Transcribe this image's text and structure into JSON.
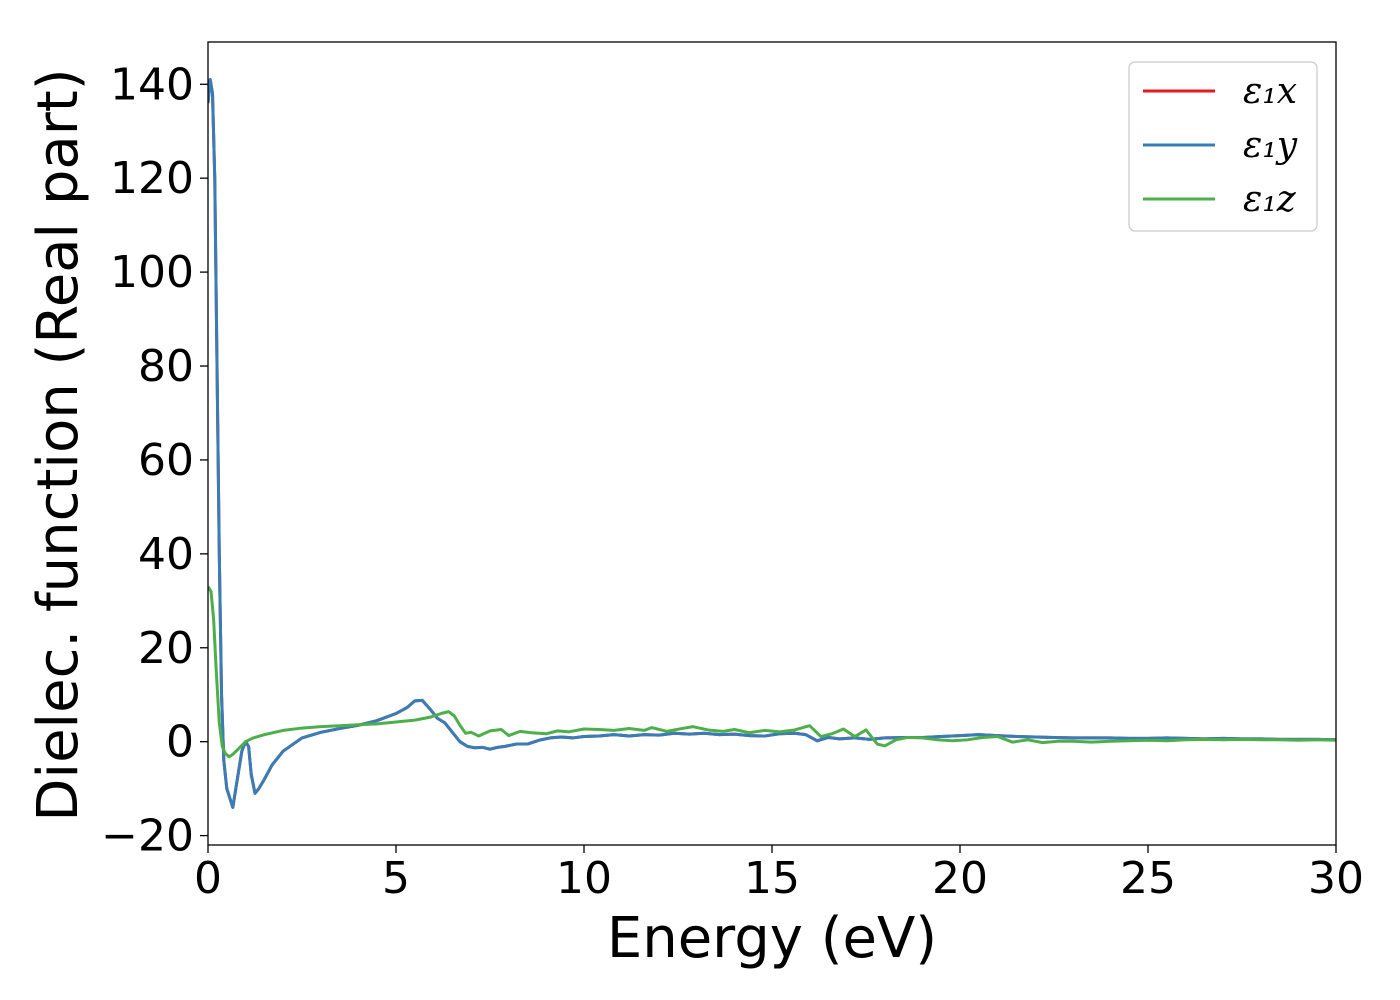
{
  "chart_data": {
    "type": "line",
    "xlabel": "Energy (eV)",
    "ylabel": "Dielec. function (Real part)",
    "xlim": [
      0,
      30
    ],
    "ylim": [
      -22,
      149
    ],
    "xticks": [
      0,
      5,
      10,
      15,
      20,
      25,
      30
    ],
    "yticks": [
      -20,
      0,
      20,
      40,
      60,
      80,
      100,
      120,
      140
    ],
    "xtick_labels": [
      "0",
      "5",
      "10",
      "15",
      "20",
      "25",
      "30"
    ],
    "ytick_labels": [
      "−20",
      "0",
      "20",
      "40",
      "60",
      "80",
      "100",
      "120",
      "140"
    ],
    "grid": false,
    "legend": "top-right",
    "series": [
      {
        "name": "ε₁x",
        "color": "#e41a1c",
        "points": [
          [
            0.0,
            136
          ],
          [
            0.06,
            141
          ],
          [
            0.12,
            138
          ],
          [
            0.18,
            120
          ],
          [
            0.24,
            80
          ],
          [
            0.3,
            40
          ],
          [
            0.36,
            10
          ],
          [
            0.42,
            -4
          ],
          [
            0.5,
            -10
          ],
          [
            0.58,
            -12
          ],
          [
            0.66,
            -14
          ],
          [
            0.74,
            -10
          ],
          [
            0.82,
            -6
          ],
          [
            0.9,
            -2
          ],
          [
            1.0,
            0
          ],
          [
            1.08,
            -1
          ],
          [
            1.15,
            -7
          ],
          [
            1.25,
            -11
          ],
          [
            1.35,
            -10
          ],
          [
            1.5,
            -8
          ],
          [
            1.7,
            -5
          ],
          [
            2.0,
            -2
          ],
          [
            2.5,
            0.8
          ],
          [
            3.0,
            2
          ],
          [
            3.5,
            2.8
          ],
          [
            4.0,
            3.5
          ],
          [
            4.5,
            4.5
          ],
          [
            5.0,
            6
          ],
          [
            5.3,
            7.3
          ],
          [
            5.5,
            8.7
          ],
          [
            5.7,
            8.8
          ],
          [
            5.9,
            7
          ],
          [
            6.1,
            5
          ],
          [
            6.3,
            4
          ],
          [
            6.5,
            2
          ],
          [
            6.7,
            0
          ],
          [
            6.9,
            -1
          ],
          [
            7.1,
            -1.3
          ],
          [
            7.3,
            -1.2
          ],
          [
            7.5,
            -1.6
          ],
          [
            7.7,
            -1.2
          ],
          [
            7.9,
            -1
          ],
          [
            8.2,
            -0.5
          ],
          [
            8.5,
            -0.5
          ],
          [
            8.8,
            0.3
          ],
          [
            9.1,
            0.8
          ],
          [
            9.4,
            1
          ],
          [
            9.7,
            0.8
          ],
          [
            10.0,
            1.1
          ],
          [
            10.4,
            1.2
          ],
          [
            10.8,
            1.5
          ],
          [
            11.2,
            1.2
          ],
          [
            11.6,
            1.5
          ],
          [
            12.0,
            1.4
          ],
          [
            12.4,
            1.8
          ],
          [
            12.8,
            1.6
          ],
          [
            13.2,
            1.8
          ],
          [
            13.6,
            1.5
          ],
          [
            14.0,
            1.6
          ],
          [
            14.4,
            1.3
          ],
          [
            14.8,
            1.2
          ],
          [
            15.2,
            1.7
          ],
          [
            15.6,
            1.8
          ],
          [
            15.9,
            1.5
          ],
          [
            16.2,
            0.2
          ],
          [
            16.5,
            0.9
          ],
          [
            16.8,
            0.6
          ],
          [
            17.2,
            0.8
          ],
          [
            17.6,
            0.5
          ],
          [
            18.0,
            0.8
          ],
          [
            18.5,
            0.9
          ],
          [
            19.0,
            0.9
          ],
          [
            19.5,
            1.1
          ],
          [
            20.0,
            1.3
          ],
          [
            20.5,
            1.5
          ],
          [
            21.0,
            1.3
          ],
          [
            21.5,
            1.1
          ],
          [
            22.0,
            1.0
          ],
          [
            22.5,
            0.9
          ],
          [
            23.0,
            0.8
          ],
          [
            23.5,
            0.8
          ],
          [
            24.0,
            0.8
          ],
          [
            24.5,
            0.7
          ],
          [
            25.0,
            0.7
          ],
          [
            25.5,
            0.8
          ],
          [
            26.0,
            0.7
          ],
          [
            26.5,
            0.6
          ],
          [
            27.0,
            0.7
          ],
          [
            27.5,
            0.6
          ],
          [
            28.0,
            0.6
          ],
          [
            28.5,
            0.5
          ],
          [
            29.0,
            0.5
          ],
          [
            29.5,
            0.5
          ],
          [
            30.0,
            0.4
          ]
        ]
      },
      {
        "name": "ε₁y",
        "color": "#377eb8",
        "points": [
          [
            0.0,
            136
          ],
          [
            0.06,
            141
          ],
          [
            0.12,
            138
          ],
          [
            0.18,
            120
          ],
          [
            0.24,
            80
          ],
          [
            0.3,
            40
          ],
          [
            0.36,
            10
          ],
          [
            0.42,
            -4
          ],
          [
            0.5,
            -10
          ],
          [
            0.58,
            -12
          ],
          [
            0.66,
            -14
          ],
          [
            0.74,
            -10
          ],
          [
            0.82,
            -6
          ],
          [
            0.9,
            -2
          ],
          [
            1.0,
            0
          ],
          [
            1.08,
            -1
          ],
          [
            1.15,
            -7
          ],
          [
            1.25,
            -11
          ],
          [
            1.35,
            -10
          ],
          [
            1.5,
            -8
          ],
          [
            1.7,
            -5
          ],
          [
            2.0,
            -2
          ],
          [
            2.5,
            0.8
          ],
          [
            3.0,
            2
          ],
          [
            3.5,
            2.8
          ],
          [
            4.0,
            3.5
          ],
          [
            4.5,
            4.5
          ],
          [
            5.0,
            6
          ],
          [
            5.3,
            7.3
          ],
          [
            5.5,
            8.7
          ],
          [
            5.7,
            8.8
          ],
          [
            5.9,
            7
          ],
          [
            6.1,
            5
          ],
          [
            6.3,
            4
          ],
          [
            6.5,
            2
          ],
          [
            6.7,
            0
          ],
          [
            6.9,
            -1
          ],
          [
            7.1,
            -1.3
          ],
          [
            7.3,
            -1.2
          ],
          [
            7.5,
            -1.6
          ],
          [
            7.7,
            -1.2
          ],
          [
            7.9,
            -1
          ],
          [
            8.2,
            -0.5
          ],
          [
            8.5,
            -0.5
          ],
          [
            8.8,
            0.3
          ],
          [
            9.1,
            0.8
          ],
          [
            9.4,
            1
          ],
          [
            9.7,
            0.8
          ],
          [
            10.0,
            1.1
          ],
          [
            10.4,
            1.2
          ],
          [
            10.8,
            1.5
          ],
          [
            11.2,
            1.2
          ],
          [
            11.6,
            1.5
          ],
          [
            12.0,
            1.4
          ],
          [
            12.4,
            1.8
          ],
          [
            12.8,
            1.6
          ],
          [
            13.2,
            1.8
          ],
          [
            13.6,
            1.5
          ],
          [
            14.0,
            1.6
          ],
          [
            14.4,
            1.3
          ],
          [
            14.8,
            1.2
          ],
          [
            15.2,
            1.7
          ],
          [
            15.6,
            1.8
          ],
          [
            15.9,
            1.5
          ],
          [
            16.2,
            0.2
          ],
          [
            16.5,
            0.9
          ],
          [
            16.8,
            0.6
          ],
          [
            17.2,
            0.8
          ],
          [
            17.6,
            0.5
          ],
          [
            18.0,
            0.8
          ],
          [
            18.5,
            0.9
          ],
          [
            19.0,
            0.9
          ],
          [
            19.5,
            1.1
          ],
          [
            20.0,
            1.3
          ],
          [
            20.5,
            1.5
          ],
          [
            21.0,
            1.3
          ],
          [
            21.5,
            1.1
          ],
          [
            22.0,
            1.0
          ],
          [
            22.5,
            0.9
          ],
          [
            23.0,
            0.8
          ],
          [
            23.5,
            0.8
          ],
          [
            24.0,
            0.8
          ],
          [
            24.5,
            0.7
          ],
          [
            25.0,
            0.7
          ],
          [
            25.5,
            0.8
          ],
          [
            26.0,
            0.7
          ],
          [
            26.5,
            0.6
          ],
          [
            27.0,
            0.7
          ],
          [
            27.5,
            0.6
          ],
          [
            28.0,
            0.6
          ],
          [
            28.5,
            0.5
          ],
          [
            29.0,
            0.5
          ],
          [
            29.5,
            0.5
          ],
          [
            30.0,
            0.4
          ]
        ]
      },
      {
        "name": "ε₁z",
        "color": "#4daf4a",
        "points": [
          [
            0.0,
            33
          ],
          [
            0.08,
            32
          ],
          [
            0.15,
            26
          ],
          [
            0.22,
            15
          ],
          [
            0.3,
            4
          ],
          [
            0.38,
            -1
          ],
          [
            0.46,
            -2.5
          ],
          [
            0.56,
            -3.2
          ],
          [
            0.66,
            -2.7
          ],
          [
            0.8,
            -1.6
          ],
          [
            1.0,
            0
          ],
          [
            1.2,
            0.8
          ],
          [
            1.5,
            1.5
          ],
          [
            2.0,
            2.4
          ],
          [
            2.5,
            2.9
          ],
          [
            3.0,
            3.2
          ],
          [
            3.5,
            3.4
          ],
          [
            4.0,
            3.6
          ],
          [
            4.5,
            3.8
          ],
          [
            5.0,
            4.2
          ],
          [
            5.5,
            4.6
          ],
          [
            5.9,
            5.2
          ],
          [
            6.2,
            6
          ],
          [
            6.4,
            6.4
          ],
          [
            6.55,
            5.5
          ],
          [
            6.7,
            3.5
          ],
          [
            6.85,
            1.8
          ],
          [
            7.0,
            2
          ],
          [
            7.2,
            1.2
          ],
          [
            7.5,
            2.3
          ],
          [
            7.8,
            2.6
          ],
          [
            8.0,
            1.3
          ],
          [
            8.3,
            2.2
          ],
          [
            8.6,
            1.9
          ],
          [
            9.0,
            1.7
          ],
          [
            9.3,
            2.3
          ],
          [
            9.6,
            2.1
          ],
          [
            10.0,
            2.7
          ],
          [
            10.4,
            2.6
          ],
          [
            10.8,
            2.4
          ],
          [
            11.2,
            2.8
          ],
          [
            11.6,
            2.4
          ],
          [
            11.8,
            3
          ],
          [
            12.2,
            2.2
          ],
          [
            12.6,
            2.8
          ],
          [
            12.9,
            3.2
          ],
          [
            13.3,
            2.5
          ],
          [
            13.7,
            2.2
          ],
          [
            14.0,
            2.6
          ],
          [
            14.4,
            1.9
          ],
          [
            14.8,
            2.4
          ],
          [
            15.2,
            2.1
          ],
          [
            15.6,
            2.5
          ],
          [
            16.0,
            3.4
          ],
          [
            16.3,
            1.1
          ],
          [
            16.6,
            1.7
          ],
          [
            16.9,
            2.7
          ],
          [
            17.2,
            1.1
          ],
          [
            17.5,
            2.5
          ],
          [
            17.8,
            -0.5
          ],
          [
            18.0,
            -0.9
          ],
          [
            18.3,
            0.4
          ],
          [
            18.6,
            0.9
          ],
          [
            19.0,
            0.8
          ],
          [
            19.4,
            0.4
          ],
          [
            19.8,
            0.2
          ],
          [
            20.2,
            0.4
          ],
          [
            20.6,
            0.9
          ],
          [
            21.0,
            1.1
          ],
          [
            21.4,
            -0.1
          ],
          [
            21.8,
            0.4
          ],
          [
            22.2,
            -0.2
          ],
          [
            22.6,
            0.1
          ],
          [
            23.0,
            0.1
          ],
          [
            23.5,
            -0.1
          ],
          [
            24.0,
            0.1
          ],
          [
            24.5,
            0.2
          ],
          [
            25.0,
            0.3
          ],
          [
            25.5,
            0.2
          ],
          [
            26.0,
            0.4
          ],
          [
            26.5,
            0.5
          ],
          [
            27.0,
            0.4
          ],
          [
            27.5,
            0.5
          ],
          [
            28.0,
            0.4
          ],
          [
            28.5,
            0.4
          ],
          [
            29.0,
            0.3
          ],
          [
            29.5,
            0.4
          ],
          [
            30.0,
            0.3
          ]
        ]
      }
    ]
  }
}
